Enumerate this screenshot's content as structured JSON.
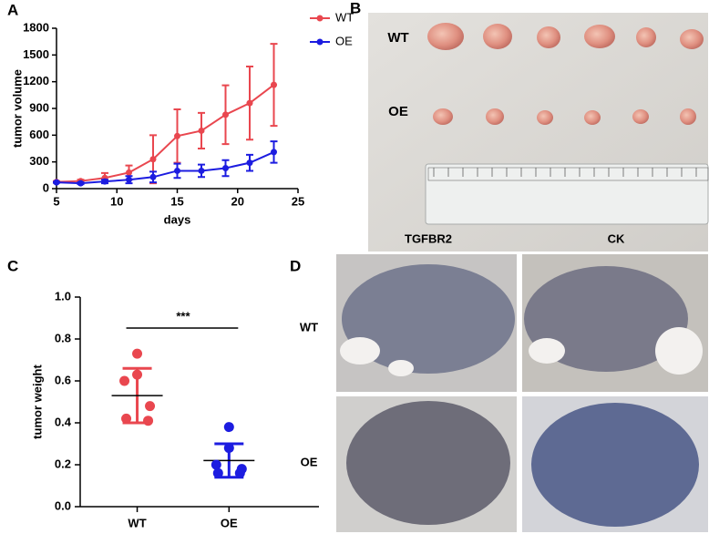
{
  "chart_data": [
    {
      "type": "line",
      "xlabel": "days",
      "ylabel": "tumor volume",
      "x": [
        5,
        7,
        9,
        11,
        13,
        15,
        17,
        19,
        21,
        23
      ],
      "series": [
        {
          "name": "WT",
          "color": "#e9474f",
          "values": [
            75,
            85,
            120,
            180,
            330,
            590,
            650,
            830,
            960,
            1165
          ],
          "errors": [
            10,
            15,
            55,
            80,
            270,
            300,
            200,
            330,
            410,
            460
          ]
        },
        {
          "name": "OE",
          "color": "#1c1ce0",
          "values": [
            70,
            60,
            80,
            100,
            130,
            200,
            200,
            230,
            290,
            410
          ],
          "errors": [
            5,
            10,
            20,
            40,
            60,
            80,
            70,
            90,
            90,
            120
          ]
        }
      ],
      "xlim": [
        5,
        25
      ],
      "xticks": [
        5,
        10,
        15,
        20,
        25
      ],
      "ylim": [
        0,
        1800
      ],
      "yticks": [
        0,
        300,
        600,
        900,
        1200,
        1500,
        1800
      ],
      "legend": "outside-right"
    },
    {
      "type": "dot",
      "ylabel": "tumor weight",
      "annotation": "***",
      "categories": [
        "WT",
        "OE"
      ],
      "colors": [
        "#e9474f",
        "#1c1ce0"
      ],
      "points": [
        [
          0.73,
          0.63,
          0.6,
          0.48,
          0.42,
          0.41
        ],
        [
          0.38,
          0.28,
          0.2,
          0.18,
          0.16,
          0.16
        ]
      ],
      "means": [
        0.53,
        0.22
      ],
      "sd": [
        0.13,
        0.08
      ],
      "ylim": [
        0,
        1
      ],
      "yticks": [
        {
          "value": 0,
          "label": "0.0"
        },
        0.2,
        0.4,
        0.6,
        0.8,
        {
          "value": 1,
          "label": "1.0"
        }
      ]
    }
  ],
  "panel_labels": [
    "A",
    "B",
    "C",
    "D"
  ],
  "photo_b": {
    "row_labels": [
      "WT",
      "OE"
    ]
  },
  "photo_d": {
    "column_labels": [
      "TGFBR2",
      "CK"
    ],
    "row_labels": [
      "WT",
      "OE"
    ]
  }
}
